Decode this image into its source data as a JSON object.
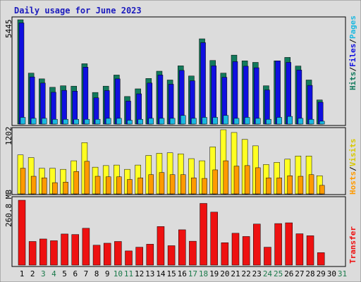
{
  "title": "Daily usage for June 2023",
  "colors": {
    "background": "#dcdcdc",
    "frame_dark": "#808080",
    "hits": "#127a5c",
    "files": "#1010e0",
    "pages": "#1cb8e0",
    "visits": "#ffff22",
    "hosts": "#ff9a00",
    "transfer": "#ee1111",
    "title_color": "#1b1bbd",
    "weekend_label": "#1a7a4a"
  },
  "side_labels": {
    "top": {
      "hits": "Hits",
      "sep1": "/",
      "files": "Files",
      "sep2": "/",
      "pages": "Pages"
    },
    "middle": {
      "hosts": "Hosts",
      "sep": "/",
      "visits": "Visits"
    },
    "bottom": {
      "transfer": "Transfer"
    }
  },
  "chart_data": [
    {
      "type": "bar",
      "panel": "hits-files-pages",
      "ymax_label": "5445",
      "ylim": [
        0,
        5445
      ],
      "categories": [
        "1",
        "2",
        "3",
        "4",
        "5",
        "6",
        "7",
        "8",
        "9",
        "10",
        "11",
        "12",
        "13",
        "14",
        "15",
        "16",
        "17",
        "18",
        "19",
        "20",
        "21",
        "22",
        "23",
        "24",
        "25",
        "26",
        "27",
        "28",
        "29",
        "30",
        "31"
      ],
      "weekend_days": [
        3,
        4,
        10,
        11,
        17,
        18,
        24,
        25,
        31
      ],
      "series": [
        {
          "name": "Hits",
          "values": [
            5445,
            2660,
            2360,
            1920,
            2000,
            1980,
            3150,
            1650,
            1980,
            2560,
            1440,
            1840,
            2380,
            2760,
            2300,
            3040,
            2510,
            4450,
            3320,
            2660,
            3600,
            3300,
            3220,
            2000,
            3300,
            3480,
            3030,
            2300,
            1260,
            0,
            0
          ]
        },
        {
          "name": "Files",
          "values": [
            5280,
            2460,
            2140,
            1660,
            1760,
            1720,
            2970,
            1370,
            1750,
            2360,
            1200,
            1580,
            2140,
            2560,
            2080,
            2800,
            2260,
            4250,
            3040,
            2440,
            3260,
            3020,
            2940,
            1780,
            3300,
            3220,
            2820,
            2020,
            1140,
            0,
            0
          ]
        },
        {
          "name": "Pages",
          "values": [
            350,
            300,
            300,
            250,
            250,
            250,
            250,
            250,
            300,
            300,
            200,
            250,
            300,
            300,
            300,
            450,
            300,
            350,
            350,
            450,
            300,
            350,
            300,
            250,
            350,
            400,
            300,
            250,
            150,
            0,
            0
          ]
        }
      ]
    },
    {
      "type": "bar",
      "panel": "hosts-visits",
      "ymax_label": "1202",
      "ylim": [
        0,
        1202
      ],
      "categories": [
        "1",
        "2",
        "3",
        "4",
        "5",
        "6",
        "7",
        "8",
        "9",
        "10",
        "11",
        "12",
        "13",
        "14",
        "15",
        "16",
        "17",
        "18",
        "19",
        "20",
        "21",
        "22",
        "23",
        "24",
        "25",
        "26",
        "27",
        "28",
        "29",
        "30",
        "31"
      ],
      "series": [
        {
          "name": "Visits",
          "values": [
            730,
            680,
            480,
            480,
            460,
            620,
            960,
            500,
            530,
            540,
            460,
            540,
            720,
            760,
            770,
            750,
            660,
            620,
            880,
            1202,
            1150,
            1020,
            900,
            550,
            590,
            650,
            710,
            710,
            340,
            0,
            0
          ]
        },
        {
          "name": "Hosts",
          "values": [
            480,
            330,
            300,
            210,
            220,
            420,
            610,
            330,
            320,
            320,
            270,
            300,
            360,
            400,
            360,
            360,
            300,
            290,
            450,
            620,
            520,
            530,
            490,
            300,
            300,
            340,
            330,
            360,
            160,
            0,
            0
          ]
        }
      ]
    },
    {
      "type": "bar",
      "panel": "transfer",
      "ymax_label": "260.8 MB",
      "ylim": [
        0,
        260.8
      ],
      "unit": "MB",
      "categories": [
        "1",
        "2",
        "3",
        "4",
        "5",
        "6",
        "7",
        "8",
        "9",
        "10",
        "11",
        "12",
        "13",
        "14",
        "15",
        "16",
        "17",
        "18",
        "19",
        "20",
        "21",
        "22",
        "23",
        "24",
        "25",
        "26",
        "27",
        "28",
        "29",
        "30",
        "31"
      ],
      "series": [
        {
          "name": "Transfer",
          "values": [
            260.8,
            95,
            105,
            98,
            125,
            123,
            148,
            80,
            88,
            95,
            57,
            72,
            84,
            155,
            78,
            142,
            96,
            248,
            213,
            90,
            128,
            115,
            165,
            72,
            167,
            170,
            126,
            118,
            50,
            0,
            0
          ]
        }
      ]
    }
  ]
}
